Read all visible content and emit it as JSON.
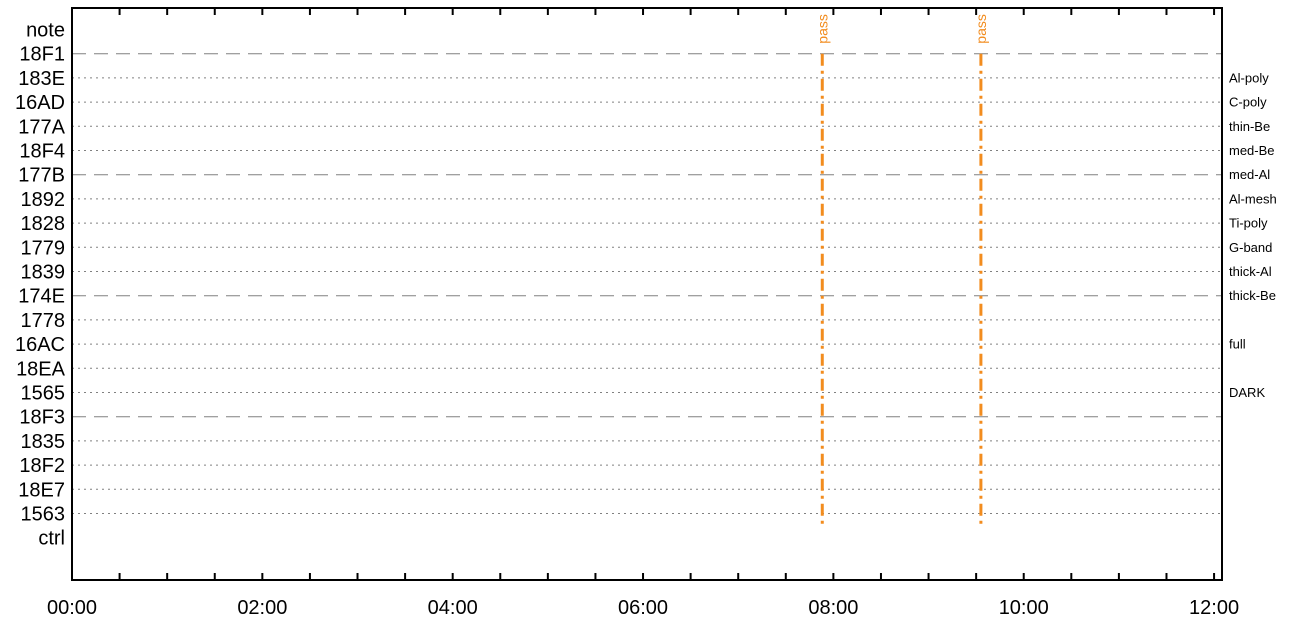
{
  "chart_data": {
    "type": "timeline",
    "title": "",
    "xlabel": "",
    "ylabel": "",
    "x_range": [
      "00:00",
      "12:05"
    ],
    "x_tick_labels": [
      "00:00",
      "02:00",
      "04:00",
      "06:00",
      "08:00",
      "10:00",
      "12:00"
    ],
    "rows": [
      {
        "label": "note",
        "style": "none",
        "right_label": ""
      },
      {
        "label": "18F1",
        "style": "dashed",
        "right_label": ""
      },
      {
        "label": "183E",
        "style": "dotted",
        "right_label": "Al-poly"
      },
      {
        "label": "16AD",
        "style": "dotted",
        "right_label": "C-poly"
      },
      {
        "label": "177A",
        "style": "dotted",
        "right_label": "thin-Be"
      },
      {
        "label": "18F4",
        "style": "dotted",
        "right_label": "med-Be"
      },
      {
        "label": "177B",
        "style": "dashed",
        "right_label": "med-Al"
      },
      {
        "label": "1892",
        "style": "dotted",
        "right_label": "Al-mesh"
      },
      {
        "label": "1828",
        "style": "dotted",
        "right_label": "Ti-poly"
      },
      {
        "label": "1779",
        "style": "dotted",
        "right_label": "G-band"
      },
      {
        "label": "1839",
        "style": "dotted",
        "right_label": "thick-Al"
      },
      {
        "label": "174E",
        "style": "dashed",
        "right_label": "thick-Be"
      },
      {
        "label": "1778",
        "style": "dotted",
        "right_label": ""
      },
      {
        "label": "16AC",
        "style": "dotted",
        "right_label": "full"
      },
      {
        "label": "18EA",
        "style": "dotted",
        "right_label": ""
      },
      {
        "label": "1565",
        "style": "dotted",
        "right_label": "DARK"
      },
      {
        "label": "18F3",
        "style": "dashed",
        "right_label": ""
      },
      {
        "label": "1835",
        "style": "dotted",
        "right_label": ""
      },
      {
        "label": "18F2",
        "style": "dotted",
        "right_label": ""
      },
      {
        "label": "18E7",
        "style": "dotted",
        "right_label": ""
      },
      {
        "label": "1563",
        "style": "dotted",
        "right_label": ""
      },
      {
        "label": "ctrl",
        "style": "none",
        "right_label": ""
      }
    ],
    "events": [
      {
        "time": "07:53",
        "label": "pass",
        "from_row": "18F1",
        "to_row": "ctrl"
      },
      {
        "time": "09:33",
        "label": "pass",
        "from_row": "18F1",
        "to_row": "ctrl"
      }
    ],
    "colors": {
      "event": "#f28c1e",
      "grid": "#808080",
      "axis": "#000000"
    }
  }
}
